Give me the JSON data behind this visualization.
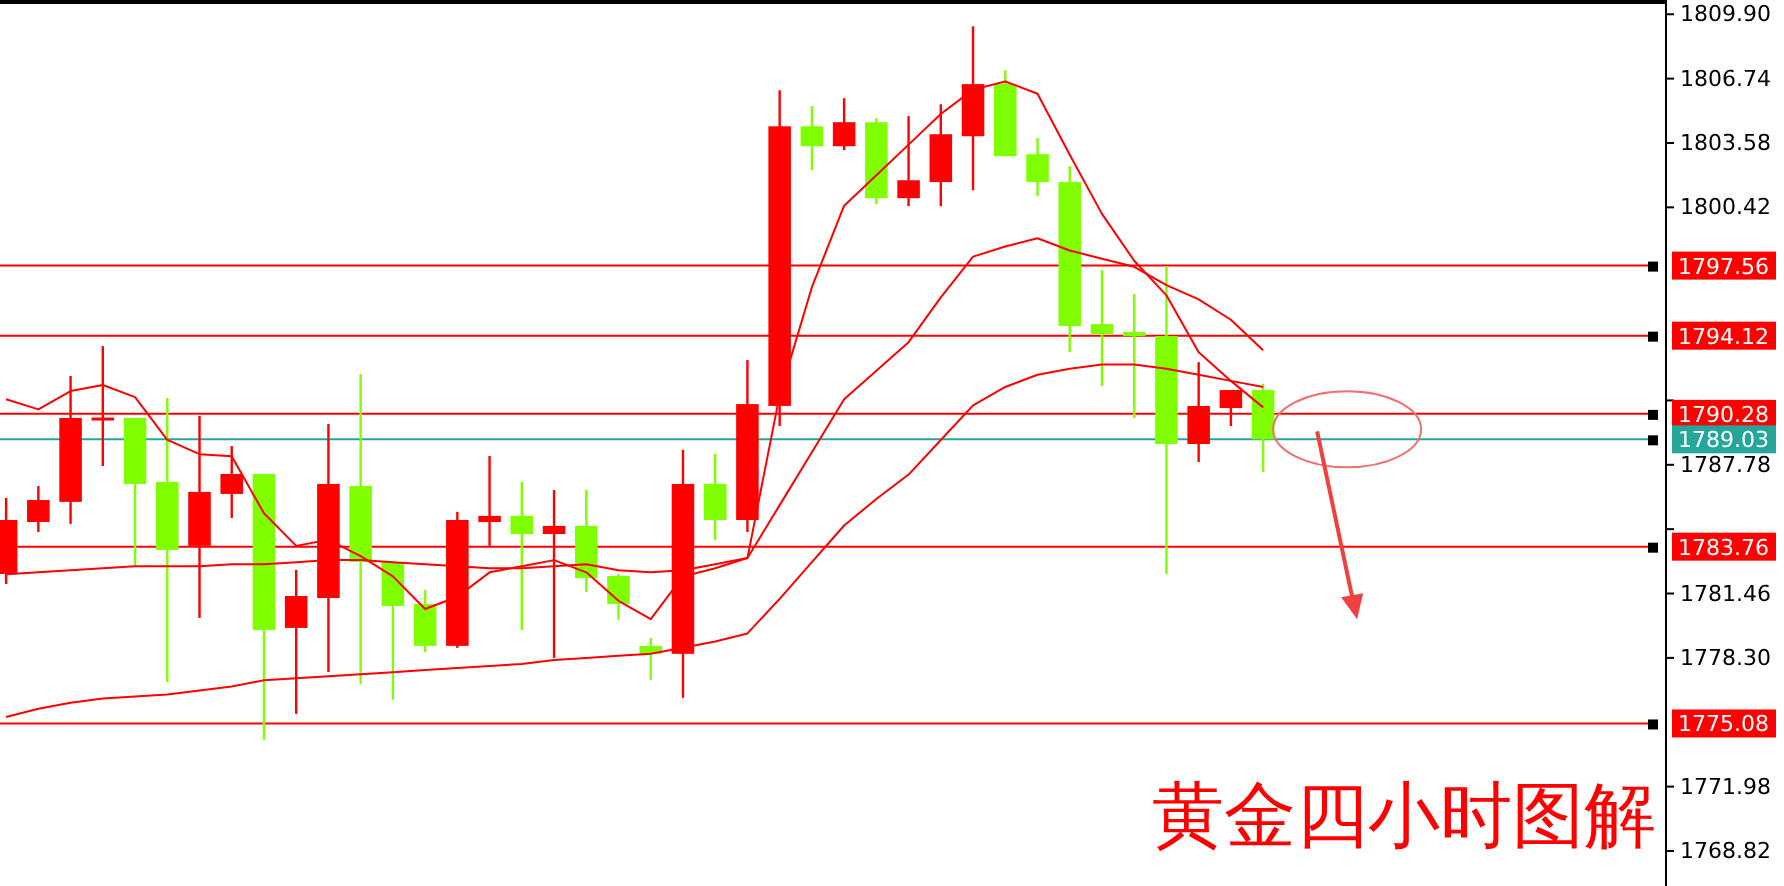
{
  "chart_data": {
    "type": "candlestick",
    "categories": [
      null,
      null,
      null,
      null,
      null,
      null,
      null,
      null,
      null,
      null,
      null,
      null,
      null,
      null,
      null,
      null,
      null,
      null,
      null,
      null,
      null,
      null,
      null,
      null,
      null,
      null,
      null,
      null,
      null,
      null,
      null,
      null,
      null,
      null,
      null,
      null,
      null,
      null,
      null,
      null,
      null,
      null,
      null,
      null,
      null,
      null,
      null,
      null,
      null,
      null,
      null,
      null
    ],
    "ohlc": [
      [
        1782.42,
        1786.15,
        1781.93,
        1785.07
      ],
      [
        1784.97,
        1786.74,
        1784.48,
        1786.05
      ],
      [
        1785.96,
        1792.14,
        1784.88,
        1790.08
      ],
      [
        1790.0,
        1793.61,
        1787.72,
        1790.1
      ],
      [
        1790.08,
        1790.08,
        1782.81,
        1786.84
      ],
      [
        1786.94,
        1791.06,
        1777.12,
        1783.6
      ],
      [
        1783.8,
        1790.18,
        1780.26,
        1786.45
      ],
      [
        1786.35,
        1788.7,
        1785.17,
        1787.33
      ],
      [
        1787.33,
        1787.33,
        1774.28,
        1779.67
      ],
      [
        1779.77,
        1782.62,
        1775.55,
        1781.34
      ],
      [
        1781.24,
        1789.78,
        1777.61,
        1786.84
      ],
      [
        1786.74,
        1792.24,
        1777.02,
        1783.01
      ],
      [
        1783.01,
        1783.01,
        1776.24,
        1780.85
      ],
      [
        1780.95,
        1781.64,
        1778.59,
        1778.89
      ],
      [
        1778.89,
        1785.47,
        1778.79,
        1785.07
      ],
      [
        1784.97,
        1788.21,
        1783.8,
        1785.27
      ],
      [
        1785.27,
        1786.94,
        1779.67,
        1784.38
      ],
      [
        1784.38,
        1786.54,
        1778.3,
        1784.78
      ],
      [
        1784.78,
        1786.54,
        1781.54,
        1782.22
      ],
      [
        1782.32,
        1782.42,
        1780.17,
        1780.95
      ],
      [
        1778.89,
        1779.28,
        1777.22,
        1778.5
      ],
      [
        1778.5,
        1788.51,
        1776.34,
        1786.84
      ],
      [
        1786.84,
        1788.31,
        1784.09,
        1785.07
      ],
      [
        1785.07,
        1792.92,
        1784.48,
        1790.76
      ],
      [
        1790.67,
        1806.17,
        1789.68,
        1804.4
      ],
      [
        1804.4,
        1805.39,
        1802.25,
        1803.42
      ],
      [
        1803.42,
        1805.78,
        1803.23,
        1804.6
      ],
      [
        1804.6,
        1804.8,
        1800.58,
        1800.87
      ],
      [
        1800.87,
        1804.9,
        1800.48,
        1801.75
      ],
      [
        1801.66,
        1805.48,
        1800.48,
        1804.01
      ],
      [
        1803.91,
        1809.31,
        1801.26,
        1806.47
      ],
      [
        1806.47,
        1807.15,
        1802.93,
        1802.93
      ],
      [
        1803.03,
        1803.82,
        1800.97,
        1801.66
      ],
      [
        1801.66,
        1802.44,
        1793.32,
        1794.59
      ],
      [
        1794.69,
        1797.34,
        1791.65,
        1794.2
      ],
      [
        1794.3,
        1796.16,
        1790.08,
        1794.1
      ],
      [
        1794.1,
        1797.54,
        1782.42,
        1788.8
      ],
      [
        1788.8,
        1792.82,
        1787.92,
        1790.67
      ],
      [
        1790.57,
        1791.45,
        1789.68,
        1791.45
      ],
      [
        1791.45,
        1791.75,
        1787.43,
        1789.03
      ],
      null,
      null,
      null,
      null,
      null,
      null,
      null,
      null,
      null,
      null,
      null,
      null
    ],
    "colors": [
      "#ff0000",
      "#ff0000",
      "#ff0000",
      "#ff0000",
      "#7fff00",
      "#7fff00",
      "#ff0000",
      "#ff0000",
      "#7fff00",
      "#ff0000",
      "#ff0000",
      "#7fff00",
      "#7fff00",
      "#7fff00",
      "#ff0000",
      "#ff0000",
      "#7fff00",
      "#ff0000",
      "#7fff00",
      "#7fff00",
      "#7fff00",
      "#ff0000",
      "#7fff00",
      "#ff0000",
      "#ff0000",
      "#7fff00",
      "#ff0000",
      "#7fff00",
      "#ff0000",
      "#ff0000",
      "#ff0000",
      "#7fff00",
      "#7fff00",
      "#7fff00",
      "#7fff00",
      "#7fff00",
      "#7fff00",
      "#ff0000",
      "#ff0000",
      "#7fff00",
      null,
      null,
      null,
      null,
      null,
      null,
      null,
      null,
      null,
      null,
      null,
      null
    ],
    "series": [
      {
        "type": "line",
        "color": "#ff0000",
        "values": [
          1791.0,
          1790.5,
          1791.4,
          1791.7,
          1791.1,
          1789.0,
          1788.3,
          1788.2,
          1785.4,
          1783.8,
          1784.1,
          1783.3,
          1782.3,
          1780.7,
          1781.3,
          1782.5,
          1782.8,
          1783.1,
          1782.5,
          1781.1,
          1780.2,
          1782.3,
          1782.7,
          1783.2,
          1791.2,
          1796.5,
          1800.5,
          1802.0,
          1803.5,
          1805.0,
          1806.2,
          1806.6,
          1806.0,
          1803.0,
          1800.1,
          1797.8,
          1796.1,
          1793.3,
          1791.9,
          1790.6,
          null,
          null,
          null,
          null,
          null,
          null,
          null,
          null,
          null,
          null,
          null,
          null
        ]
      },
      {
        "type": "line",
        "color": "#ff0000",
        "values": [
          1782.4,
          1782.5,
          1782.6,
          1782.7,
          1782.8,
          1782.8,
          1782.8,
          1782.9,
          1782.9,
          1783.0,
          1783.1,
          1783.1,
          1783.0,
          1782.9,
          1782.8,
          1782.7,
          1782.7,
          1782.8,
          1782.9,
          1782.6,
          1782.5,
          1782.6,
          1782.9,
          1783.2,
          1785.8,
          1788.4,
          1791.0,
          1792.4,
          1793.8,
          1796.0,
          1798.0,
          1798.5,
          1798.9,
          1798.3,
          1797.9,
          1797.5,
          1796.6,
          1795.9,
          1794.9,
          1793.4,
          null,
          null,
          null,
          null,
          null,
          null,
          null,
          null,
          null,
          null,
          null,
          null
        ]
      },
      {
        "type": "line",
        "color": "#ff0000",
        "values": [
          1775.4,
          1775.8,
          1776.1,
          1776.3,
          1776.4,
          1776.5,
          1776.7,
          1776.9,
          1777.2,
          1777.3,
          1777.4,
          1777.5,
          1777.6,
          1777.7,
          1777.8,
          1777.9,
          1778.0,
          1778.2,
          1778.3,
          1778.4,
          1778.5,
          1778.8,
          1779.1,
          1779.5,
          1781.2,
          1783.0,
          1784.8,
          1786.1,
          1787.3,
          1789.0,
          1790.7,
          1791.6,
          1792.2,
          1792.5,
          1792.7,
          1792.7,
          1792.5,
          1792.2,
          1791.9,
          1791.6,
          null,
          null,
          null,
          null,
          null,
          null,
          null,
          null,
          null,
          null,
          null,
          null
        ]
      }
    ],
    "ylim": [
      1767.1,
      1810.6
    ],
    "yticks": [
      {
        "value": 1809.9,
        "label": "1809.90"
      },
      1806.74,
      1803.58,
      1800.42,
      {
        "value": 1790.94,
        "label": null
      },
      1787.78,
      {
        "value": 1784.62,
        "label": null
      },
      1781.46,
      {
        "value": 1778.3,
        "label": "1778.30"
      },
      1771.98,
      1768.82
    ],
    "ref_lines": [
      {
        "axis": "y",
        "value": 1797.56,
        "label": "1797.56",
        "color": "#ff0000"
      },
      {
        "axis": "y",
        "value": 1794.12,
        "label": "1794.12",
        "color": "#ff0000"
      },
      {
        "axis": "y",
        "value": 1790.28,
        "label": "1790.28",
        "color": "#ff0000"
      },
      {
        "axis": "y",
        "value": 1789.03,
        "label": "1789.03",
        "color": "#26a69a"
      },
      {
        "axis": "y",
        "value": 1783.76,
        "label": "1783.76",
        "color": "#ff0000"
      },
      {
        "axis": "y",
        "value": 1775.08,
        "label": "1775.08",
        "color": "#ff0000"
      }
    ],
    "annotations": [
      "黄金四小时图解"
    ],
    "tick_labels": "y",
    "grid": false
  }
}
